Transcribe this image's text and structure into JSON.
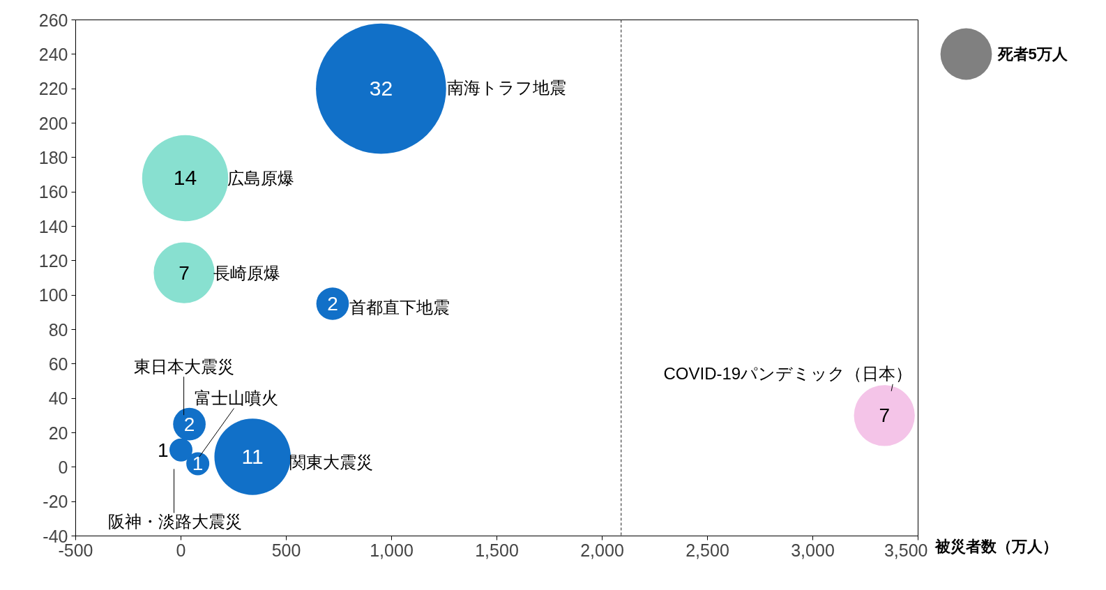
{
  "chart_data": {
    "type": "bubble",
    "xlabel": "被災者数（万人）",
    "xlim": [
      -500,
      3500
    ],
    "ylim": [
      -40,
      260
    ],
    "xticks": [
      -500,
      0,
      500,
      {
        "value": 1000,
        "label": "1,000"
      },
      {
        "value": 1500,
        "label": "1,500"
      },
      {
        "value": 2000,
        "label": "2,000"
      },
      {
        "value": 2500,
        "label": "2,500"
      },
      {
        "value": 3000,
        "label": "3,000"
      },
      {
        "value": 3500,
        "label": "3,500"
      }
    ],
    "yticks": [
      -40,
      -20,
      0,
      20,
      40,
      60,
      80,
      100,
      120,
      140,
      160,
      180,
      200,
      220,
      240,
      260
    ],
    "grid": false,
    "size_legend": [
      {
        "value": 5,
        "label": "死者5万人"
      }
    ],
    "series": [
      {
        "x": [
          950,
          20,
          15,
          720,
          40,
          80,
          340,
          0,
          3340
        ],
        "values": [
          220,
          168,
          113,
          95,
          25,
          2,
          6,
          10,
          30
        ],
        "sizes": [
          32,
          14,
          7,
          2,
          2,
          1,
          11,
          1,
          7
        ],
        "value_labels": [
          "32",
          "14",
          "7",
          "2",
          "2",
          "1",
          "11",
          "1",
          "7"
        ],
        "colors": [
          "#1170c8",
          "#88e0d0",
          "#88e0d0",
          "#1170c8",
          "#1170c8",
          "#1170c8",
          "#1170c8",
          "#1170c8",
          "#f4c4e8"
        ]
      }
    ],
    "annotations": [
      "南海トラフ地震",
      {
        "text": "広島原爆",
        "x": 20,
        "y": 168
      },
      {
        "text": "長崎原爆",
        "x": 15,
        "y": 113
      },
      {
        "text": "首都直下地震",
        "x": 720,
        "y": 95
      },
      {
        "text": "東日本大震災",
        "x": 40,
        "y": 25
      },
      "富士山噴火",
      {
        "text": "関東大震災",
        "x": 340,
        "y": 6
      },
      "阪神・淡路大震災",
      {
        "text": "COVID-19パンデミック（日本）",
        "x": 3340,
        "y": 30
      }
    ],
    "ref_lines": [
      {
        "axis": "x",
        "value": 2090,
        "color": "#404040",
        "line_style": "dashed"
      }
    ]
  }
}
